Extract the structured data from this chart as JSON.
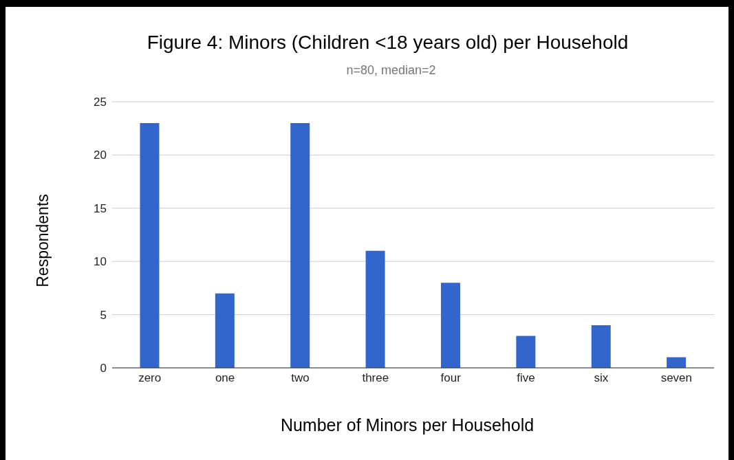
{
  "chart_data": {
    "type": "bar",
    "title": "Figure 4: Minors (Children <18 years old) per Household",
    "subtitle": "n=80, median=2",
    "xlabel": "Number of Minors per Household",
    "ylabel": "Respondents",
    "categories": [
      "zero",
      "one",
      "two",
      "three",
      "four",
      "five",
      "six",
      "seven"
    ],
    "values": [
      23,
      7,
      23,
      11,
      8,
      3,
      4,
      1
    ],
    "color": "#3366cc",
    "ylim": [
      0,
      25
    ],
    "yticks": [
      0,
      5,
      10,
      15,
      20,
      25
    ],
    "grid": "y",
    "legend": false
  }
}
